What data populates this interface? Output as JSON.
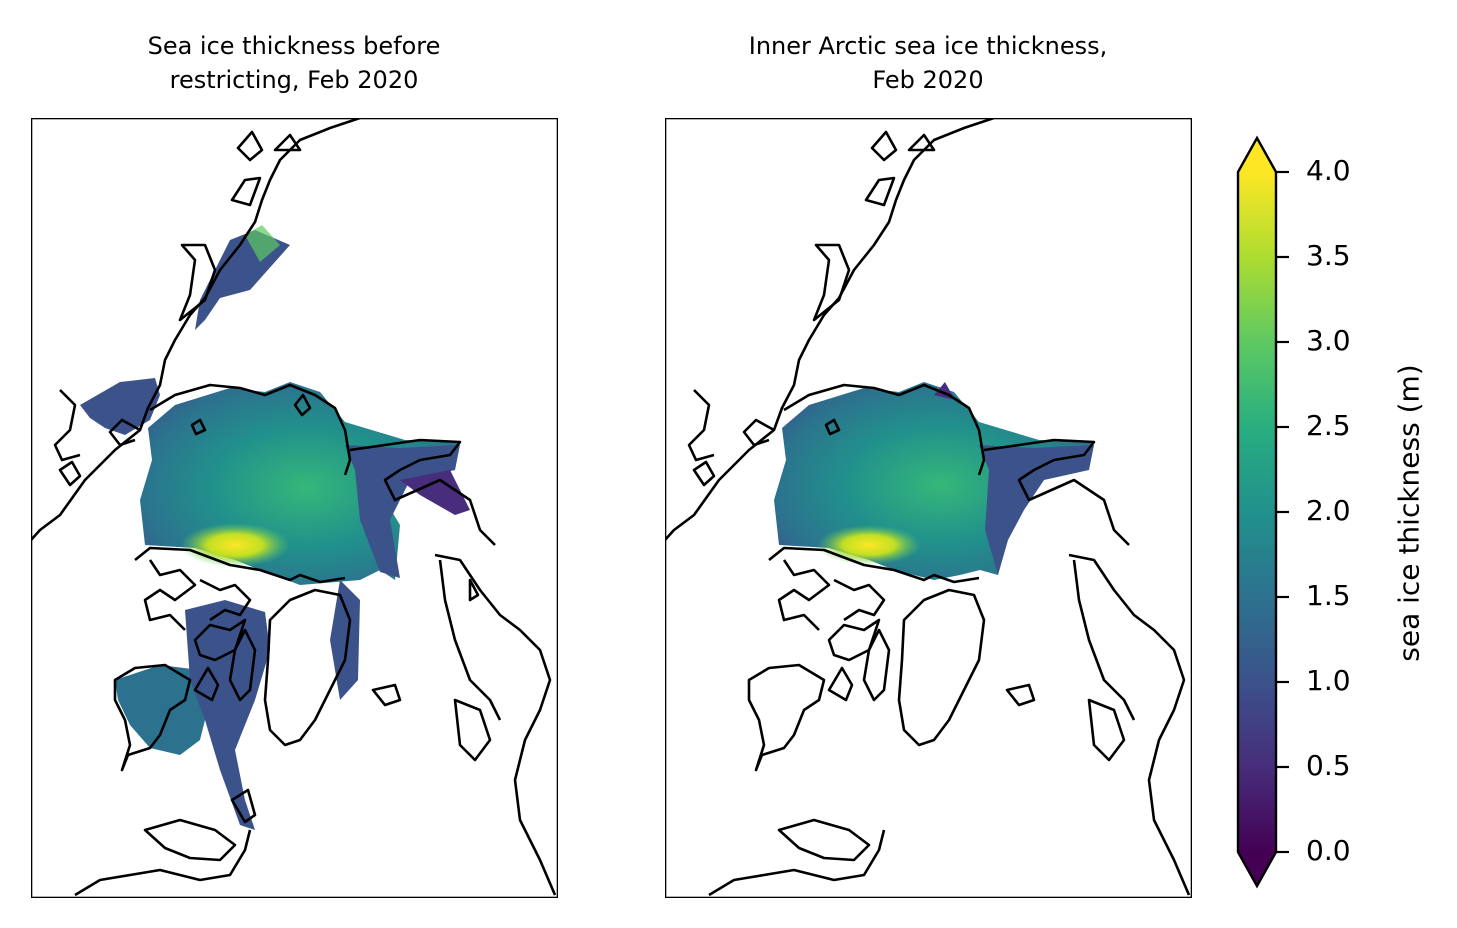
{
  "panels": [
    {
      "title_lines": [
        "Sea ice thickness before",
        "restricting, Feb 2020"
      ],
      "extent": "full"
    },
    {
      "title_lines": [
        "Inner Arctic sea ice thickness,",
        "Feb 2020"
      ],
      "extent": "inner"
    }
  ],
  "colorbar": {
    "label": "sea ice thickness (m)",
    "min": 0.0,
    "max": 4.0,
    "extend": "both",
    "colormap": "viridis",
    "ticks": [
      "0.0",
      "0.5",
      "1.0",
      "1.5",
      "2.0",
      "2.5",
      "3.0",
      "3.5",
      "4.0"
    ]
  },
  "colors": {
    "coastline": "#000000",
    "low": "#440154",
    "mid": "#21908d",
    "high": "#fde725"
  }
}
